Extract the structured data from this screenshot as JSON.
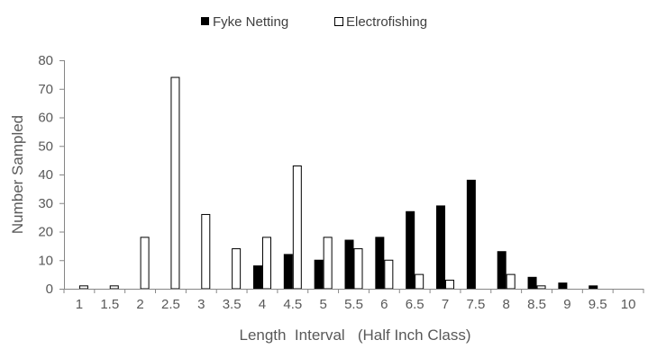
{
  "chart_data": {
    "type": "bar",
    "title": "",
    "xlabel": "Length  Interval   (Half Inch Class)",
    "ylabel": "Number Sampled",
    "ylim": [
      0,
      80
    ],
    "yticks": [
      0,
      10,
      20,
      30,
      40,
      50,
      60,
      70,
      80
    ],
    "grid": false,
    "legend_position": "top-center",
    "categories": [
      "1",
      "1.5",
      "2",
      "2.5",
      "3",
      "3.5",
      "4",
      "4.5",
      "5",
      "5.5",
      "6",
      "6.5",
      "7",
      "7.5",
      "8",
      "8.5",
      "9",
      "9.5",
      "10"
    ],
    "series": [
      {
        "name": "Fyke Netting",
        "color": "#000000",
        "fill": "solid",
        "values": [
          0,
          0,
          0,
          0,
          0,
          0,
          8,
          12,
          10,
          17,
          18,
          27,
          29,
          38,
          13,
          4,
          2,
          1,
          0
        ]
      },
      {
        "name": "Electrofishing",
        "color": "#ffffff",
        "fill": "outline",
        "values": [
          1,
          1,
          18,
          74,
          26,
          14,
          18,
          43,
          18,
          14,
          10,
          5,
          3,
          0,
          5,
          1,
          0,
          0,
          0
        ]
      }
    ]
  }
}
